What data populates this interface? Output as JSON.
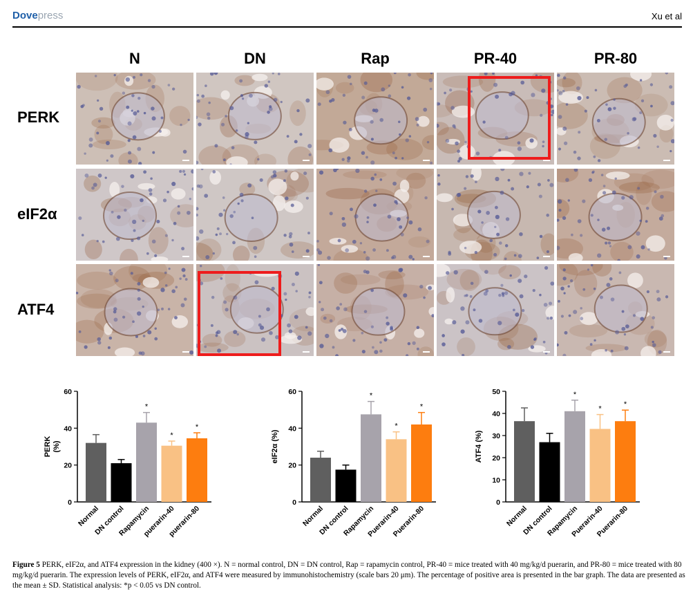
{
  "header": {
    "brand_bold": "Dove",
    "brand_light": "press",
    "authors": "Xu et al"
  },
  "columns": [
    "N",
    "DN",
    "Rap",
    "PR-40",
    "PR-80"
  ],
  "rows": [
    "PERK",
    "eIF2α",
    "ATF4"
  ],
  "charts": [
    {
      "type": "bar",
      "ylabel": "PERK\n(%)",
      "ylim": [
        0,
        60
      ],
      "yticks": [
        "0",
        "20",
        "40",
        "60"
      ],
      "categories": [
        "Normal",
        "DN control",
        "Rapamycin",
        "puerarin-40",
        "puerarin-80"
      ],
      "values": [
        32,
        21,
        43,
        30.5,
        34.5
      ],
      "errors": [
        4.5,
        2,
        5.5,
        2.5,
        3
      ],
      "significance": [
        "",
        "",
        "*",
        "*",
        "*"
      ],
      "colors": [
        "#5f5f5f",
        "#000000",
        "#a7a3ab",
        "#f9c184",
        "#fd7d0f"
      ]
    },
    {
      "type": "bar",
      "ylabel": "eIF2α (%)",
      "ylim": [
        0,
        60
      ],
      "yticks": [
        "0",
        "20",
        "40",
        "60"
      ],
      "categories": [
        "Normal",
        "DN control",
        "Rapamycin",
        "Puerarin-40",
        "Puerarin-80"
      ],
      "values": [
        24,
        17.5,
        47.5,
        34,
        42
      ],
      "errors": [
        3.5,
        2.5,
        7,
        4,
        6.5
      ],
      "significance": [
        "",
        "",
        "*",
        "*",
        "*"
      ],
      "colors": [
        "#5f5f5f",
        "#000000",
        "#a7a3ab",
        "#f9c184",
        "#fd7d0f"
      ]
    },
    {
      "type": "bar",
      "ylabel": "ATF4 (%)",
      "ylim": [
        0,
        50
      ],
      "yticks": [
        "0",
        "10",
        "20",
        "30",
        "40",
        "50"
      ],
      "categories": [
        "Normal",
        "DN control",
        "Rapamycin",
        "Puerarin-40",
        "Puerarin-80"
      ],
      "values": [
        36.5,
        27,
        41,
        33,
        36.5
      ],
      "errors": [
        6,
        4,
        5,
        6.5,
        5
      ],
      "significance": [
        "",
        "",
        "*",
        "*",
        "*"
      ],
      "colors": [
        "#5f5f5f",
        "#000000",
        "#a7a3ab",
        "#f9c184",
        "#fd7d0f"
      ]
    }
  ],
  "caption": {
    "label": "Figure 5",
    "text": "PERK, eIF2α, and ATF4 expression in the kidney (400 ×). N = normal control, DN = DN control, Rap = rapamycin control, PR-40 = mice treated with 40 mg/kg/d puerarin, and PR-80 = mice treated with 80 mg/kg/d puerarin. The expression levels of PERK, eIF2α, and ATF4 were measured by immunohistochemistry (scale bars 20 μm). The percentage of positive area is presented in the bar graph. The data are presented as the mean ± SD. Statistical analysis: *p < 0.05 vs DN control."
  }
}
